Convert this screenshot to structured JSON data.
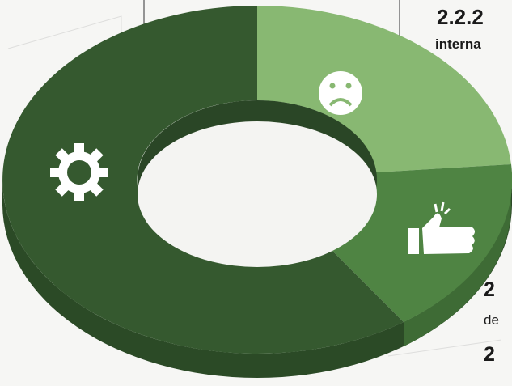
{
  "header": {
    "number": "2.2.2",
    "subtitle": "interna"
  },
  "sections": [
    {
      "number": "2",
      "text": "de"
    },
    {
      "number": "2"
    }
  ]
}
